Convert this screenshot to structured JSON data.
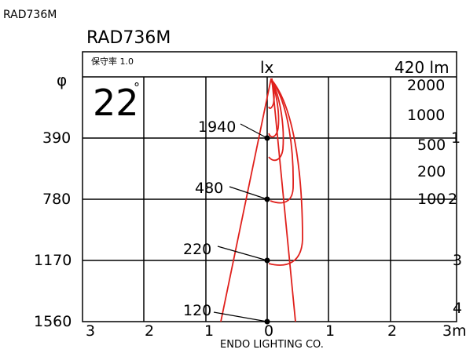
{
  "header": {
    "corner_title": "RAD736M",
    "title": "RAD736M",
    "maintenance": "保守率 1.0",
    "beam_angle": "22",
    "beam_angle_unit": "°",
    "phi_symbol": "φ",
    "unit_lx": "lx",
    "unit_lm": "420 lm"
  },
  "axes": {
    "left_labels": [
      "390",
      "780",
      "1170",
      "1560"
    ],
    "right_labels": [
      "1",
      "2",
      "3",
      "4"
    ],
    "bottom_labels": [
      "3",
      "2",
      "1",
      "0",
      "1",
      "2",
      "3m"
    ]
  },
  "contours": [
    "2000",
    "1000",
    "500",
    "200",
    "100"
  ],
  "points": [
    {
      "distance_m": 1,
      "lux": "1940"
    },
    {
      "distance_m": 2,
      "lux": "480"
    },
    {
      "distance_m": 3,
      "lux": "220"
    },
    {
      "distance_m": 4,
      "lux": "120"
    }
  ],
  "footer": "ENDO LIGHTING CO.",
  "colors": {
    "curve": "#e0201c",
    "grid": "#000000"
  }
}
